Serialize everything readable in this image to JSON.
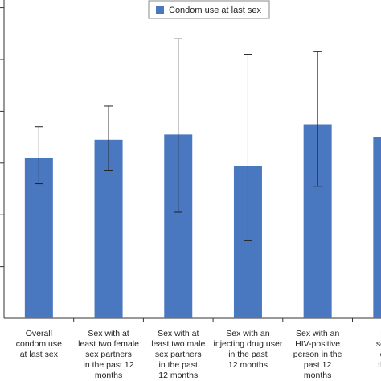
{
  "chart_data": {
    "type": "bar",
    "legend": {
      "placement": "top-center",
      "entries": [
        "Condom use at last sex"
      ]
    },
    "series": [
      {
        "name": "Condom use at last sex",
        "color": "#4a78c0",
        "values": [
          0.62,
          0.69,
          0.71,
          0.59,
          0.75,
          0.7
        ],
        "error_low": [
          0.52,
          0.57,
          0.41,
          0.3,
          0.51,
          null
        ],
        "error_high": [
          0.74,
          0.82,
          1.08,
          1.02,
          1.03,
          null
        ]
      }
    ],
    "categories": [
      [
        "Overall",
        "condom use",
        "at last sex"
      ],
      [
        "Sex with at",
        "least two female",
        "sex partners",
        "in the past 12",
        "months"
      ],
      [
        "Sex with at",
        "least two male",
        "sex partners",
        "in the past",
        "12 months"
      ],
      [
        "Sex with an",
        "injecting drug user",
        "in the past",
        "12 months"
      ],
      [
        "Sex with an",
        "HIV-positive",
        "person in the",
        "past 12",
        "months"
      ],
      [
        "Exc",
        "sex fo",
        "or d",
        "the p",
        "mo"
      ]
    ],
    "ylim": [
      0,
      1.2
    ],
    "grid": false,
    "xlabel": "",
    "ylabel": ""
  }
}
